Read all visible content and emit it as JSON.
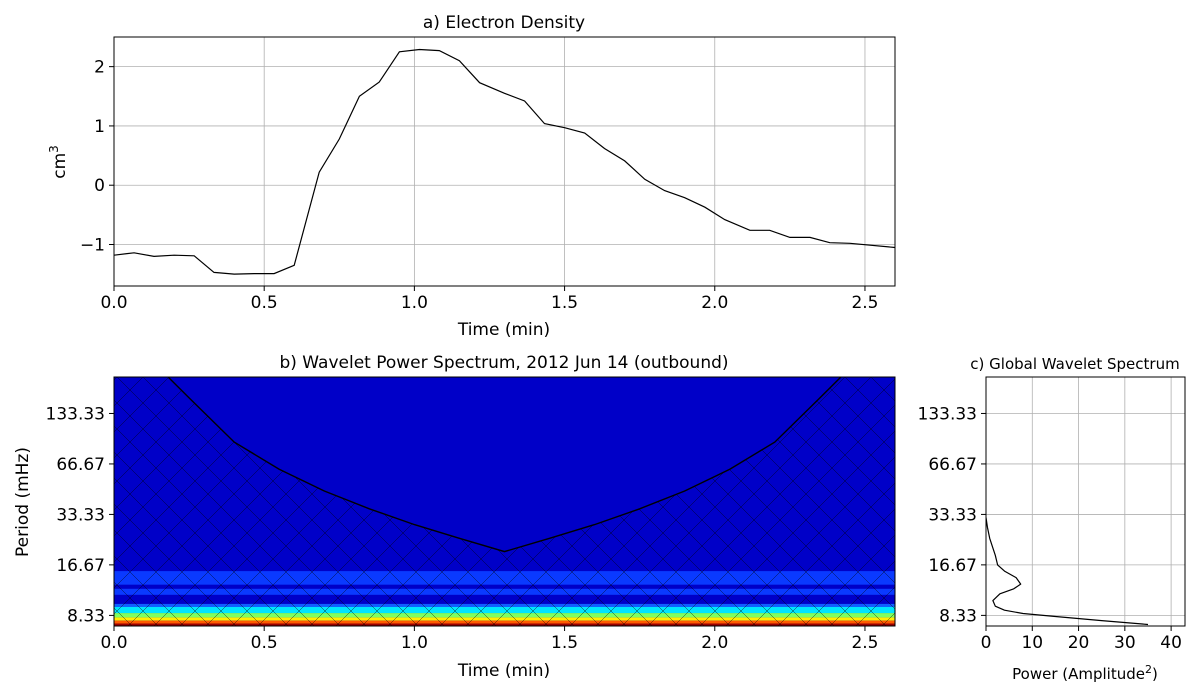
{
  "chart_data": [
    {
      "type": "line",
      "title": "a) Electron Density",
      "xlabel": "Time (min)",
      "ylabel": "cm",
      "ylabel_sup": "3",
      "xlim": [
        0,
        2.6
      ],
      "ylim": [
        -1.7,
        2.5
      ],
      "grid": true,
      "xticks": [
        0.0,
        0.5,
        1.0,
        1.5,
        2.0,
        2.5
      ],
      "xtick_labels": [
        "0.0",
        "0.5",
        "1.0",
        "1.5",
        "2.0",
        "2.5"
      ],
      "yticks": [
        -1,
        0,
        1,
        2
      ],
      "ytick_labels": [
        "−1",
        "0",
        "1",
        "2"
      ],
      "series": [
        {
          "color": "#000000",
          "x": [
            0.0,
            0.067,
            0.133,
            0.2,
            0.267,
            0.333,
            0.4,
            0.467,
            0.533,
            0.6,
            0.683,
            0.75,
            0.817,
            0.883,
            0.95,
            1.017,
            1.083,
            1.15,
            1.217,
            1.3,
            1.367,
            1.433,
            1.5,
            1.567,
            1.633,
            1.7,
            1.767,
            1.833,
            1.9,
            1.967,
            2.033,
            2.117,
            2.183,
            2.25,
            2.317,
            2.383,
            2.45,
            2.6
          ],
          "y": [
            -1.18,
            -1.14,
            -1.2,
            -1.18,
            -1.19,
            -1.47,
            -1.5,
            -1.49,
            -1.49,
            -1.35,
            0.22,
            0.78,
            1.5,
            1.74,
            2.25,
            2.29,
            2.27,
            2.1,
            1.73,
            1.55,
            1.42,
            1.04,
            0.97,
            0.88,
            0.62,
            0.41,
            0.1,
            -0.09,
            -0.21,
            -0.37,
            -0.58,
            -0.76,
            -0.76,
            -0.88,
            -0.88,
            -0.97,
            -0.98,
            -1.05
          ]
        }
      ]
    },
    {
      "type": "heatmap",
      "title": "b) Wavelet Power Spectrum, 2012 Jun 14 (outbound)",
      "xlabel": "Time (min)",
      "ylabel": "Period (mHz)",
      "xlim": [
        0,
        2.6
      ],
      "ylim": [
        7.2,
        220
      ],
      "log_y": true,
      "xticks": [
        0.0,
        0.5,
        1.0,
        1.5,
        2.0,
        2.5
      ],
      "xtick_labels": [
        "0.0",
        "0.5",
        "1.0",
        "1.5",
        "2.0",
        "2.5"
      ],
      "yticks": [
        8.33,
        16.67,
        33.33,
        66.67,
        133.33
      ],
      "ytick_labels": [
        "8.33",
        "16.67",
        "33.33",
        "66.67",
        "133.33"
      ],
      "background_color": "#0000c8",
      "bands": [
        {
          "y0": 12.7,
          "y1": 15.3,
          "color": "#0a3aff"
        },
        {
          "y0": 11.05,
          "y1": 12.0,
          "color": "#0a3aff"
        },
        {
          "y0": 9.35,
          "y1": 9.75,
          "color": "#1060ff"
        },
        {
          "y0": 8.6,
          "y1": 9.35,
          "color": "#00e5ff"
        },
        {
          "y0": 8.1,
          "y1": 8.6,
          "color": "#7fff60"
        },
        {
          "y0": 7.75,
          "y1": 8.1,
          "color": "#ffee00"
        },
        {
          "y0": 7.45,
          "y1": 7.75,
          "color": "#ff5a00"
        },
        {
          "y0": 7.2,
          "y1": 7.45,
          "color": "#9a0000"
        }
      ],
      "coi": {
        "x": [
          0.18,
          0.25,
          0.4,
          0.55,
          0.7,
          0.85,
          1.0,
          1.15,
          1.3,
          1.45,
          1.6,
          1.75,
          1.9,
          2.05,
          2.2,
          2.35,
          2.42
        ],
        "y": [
          220,
          165,
          90,
          62,
          46,
          36,
          29,
          24,
          20,
          24,
          29,
          36,
          46,
          62,
          90,
          165,
          220
        ]
      }
    },
    {
      "type": "line",
      "title": "c) Global Wavelet Spectrum",
      "xlabel": "Power (Amplitude",
      "xlabel_sup": "2",
      "xlim": [
        0,
        43
      ],
      "ylim": [
        7.2,
        220
      ],
      "log_y": true,
      "grid": true,
      "xticks": [
        0,
        10,
        20,
        30,
        40
      ],
      "xtick_labels": [
        "0",
        "10",
        "20",
        "30",
        "40"
      ],
      "yticks": [
        8.33,
        16.67,
        33.33,
        66.67,
        133.33
      ],
      "ytick_labels": [
        "8.33",
        "16.67",
        "33.33",
        "66.67",
        "133.33"
      ],
      "series": [
        {
          "color": "#000000",
          "x": [
            0.0,
            0.3,
            0.8,
            1.5,
            2.0,
            2.5,
            4.0,
            6.5,
            7.5,
            6.0,
            3.0,
            1.5,
            2.0,
            4.0,
            8.0,
            15.0,
            25.0,
            35.0
          ],
          "y": [
            32,
            28,
            24,
            21,
            19,
            16.67,
            15.3,
            14.0,
            12.8,
            12.0,
            11.2,
            10.2,
            9.45,
            8.95,
            8.55,
            8.2,
            7.75,
            7.35
          ]
        }
      ]
    }
  ]
}
